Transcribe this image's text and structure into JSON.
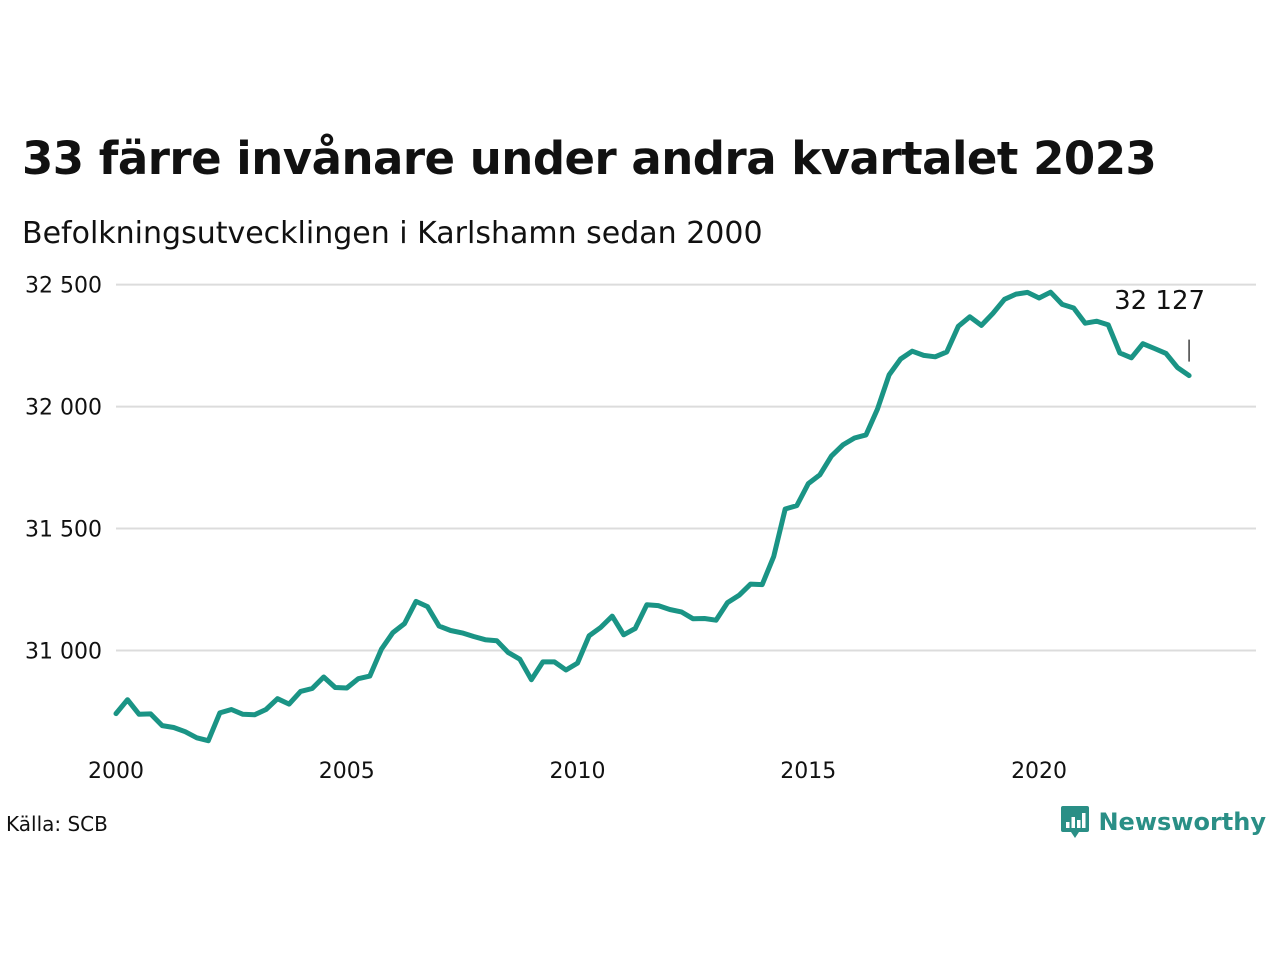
{
  "title": "33 färre invånare under andra kvartalet 2023",
  "subtitle": "Befolkningsutvecklingen i Karlshamn sedan 2000",
  "source": "Källa: SCB",
  "brand": {
    "name": "Newsworthy",
    "icon": "newsworthy-logo-icon",
    "color": "#2a8f86"
  },
  "chart_data": {
    "type": "line",
    "series": [
      {
        "color": "#1a9485",
        "start_year": 2000,
        "step": "quarter",
        "values": [
          30741,
          30798,
          30738,
          30740,
          30692,
          30684,
          30667,
          30642,
          30630,
          30744,
          30758,
          30738,
          30736,
          30758,
          30802,
          30780,
          30832,
          30844,
          30891,
          30848,
          30846,
          30884,
          30895,
          31005,
          31073,
          31110,
          31201,
          31180,
          31100,
          31082,
          31072,
          31057,
          31044,
          31040,
          30991,
          30964,
          30880,
          30953,
          30953,
          30920,
          30948,
          31060,
          31094,
          31141,
          31064,
          31090,
          31187,
          31184,
          31168,
          31158,
          31130,
          31131,
          31124,
          31196,
          31226,
          31272,
          31270,
          31385,
          31580,
          31594,
          31684,
          31720,
          31797,
          31843,
          31871,
          31884,
          31990,
          32130,
          32195,
          32227,
          32210,
          32204,
          32224,
          32329,
          32368,
          32333,
          32382,
          32440,
          32461,
          32468,
          32445,
          32469,
          32419,
          32404,
          32342,
          32350,
          32335,
          32220,
          32200,
          32258,
          32238,
          32218,
          32160,
          32127
        ]
      }
    ],
    "x_ticks": [
      "2000",
      "2005",
      "2010",
      "2015",
      "2020"
    ],
    "y_ticks": [
      31000,
      31500,
      32000,
      32500
    ],
    "y_tick_labels": [
      "31 000",
      "31 500",
      "32 000",
      "32 500"
    ],
    "ylim": [
      30600,
      32560
    ],
    "xlim": [
      2000,
      2024.7
    ],
    "end_label": "32 127",
    "grid": "horizontal"
  }
}
